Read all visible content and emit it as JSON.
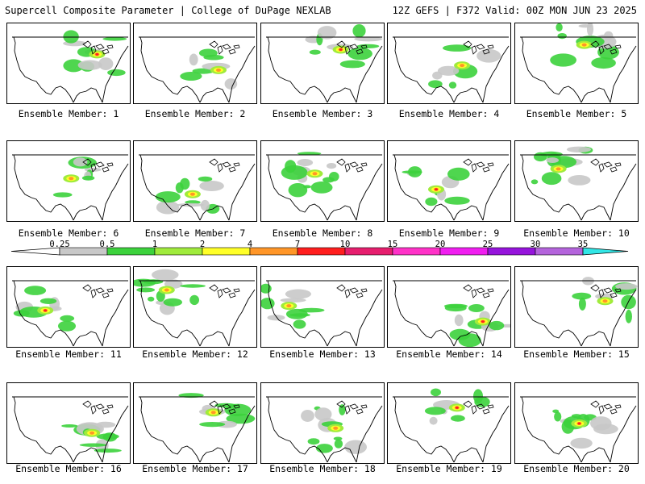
{
  "header": {
    "left": "Supercell Composite Parameter | College of DuPage NEXLAB",
    "right": "12Z GEFS | F372 Valid: 00Z MON JUN 23 2025"
  },
  "colorbar": {
    "labels": [
      "0.25",
      "0.5",
      "1",
      "2",
      "4",
      "7",
      "10",
      "15",
      "20",
      "25",
      "30",
      "35"
    ],
    "colors": [
      "#c8c8c8",
      "#3cd23c",
      "#a0eb3c",
      "#ffff28",
      "#ff9628",
      "#ff1e1e",
      "#e61e6e",
      "#ff32c8",
      "#f01ef0",
      "#9614dc",
      "#b464dc",
      "#32e6e6"
    ]
  },
  "members": [
    {
      "caption": "Ensemble Member: 1"
    },
    {
      "caption": "Ensemble Member: 2"
    },
    {
      "caption": "Ensemble Member: 3"
    },
    {
      "caption": "Ensemble Member: 4"
    },
    {
      "caption": "Ensemble Member: 5"
    },
    {
      "caption": "Ensemble Member: 6"
    },
    {
      "caption": "Ensemble Member: 7"
    },
    {
      "caption": "Ensemble Member: 8"
    },
    {
      "caption": "Ensemble Member: 9"
    },
    {
      "caption": "Ensemble Member: 10"
    },
    {
      "caption": "Ensemble Member: 11"
    },
    {
      "caption": "Ensemble Member: 12"
    },
    {
      "caption": "Ensemble Member: 13"
    },
    {
      "caption": "Ensemble Member: 14"
    },
    {
      "caption": "Ensemble Member: 15"
    },
    {
      "caption": "Ensemble Member: 16"
    },
    {
      "caption": "Ensemble Member: 17"
    },
    {
      "caption": "Ensemble Member: 18"
    },
    {
      "caption": "Ensemble Member: 19"
    },
    {
      "caption": "Ensemble Member: 20"
    }
  ]
}
